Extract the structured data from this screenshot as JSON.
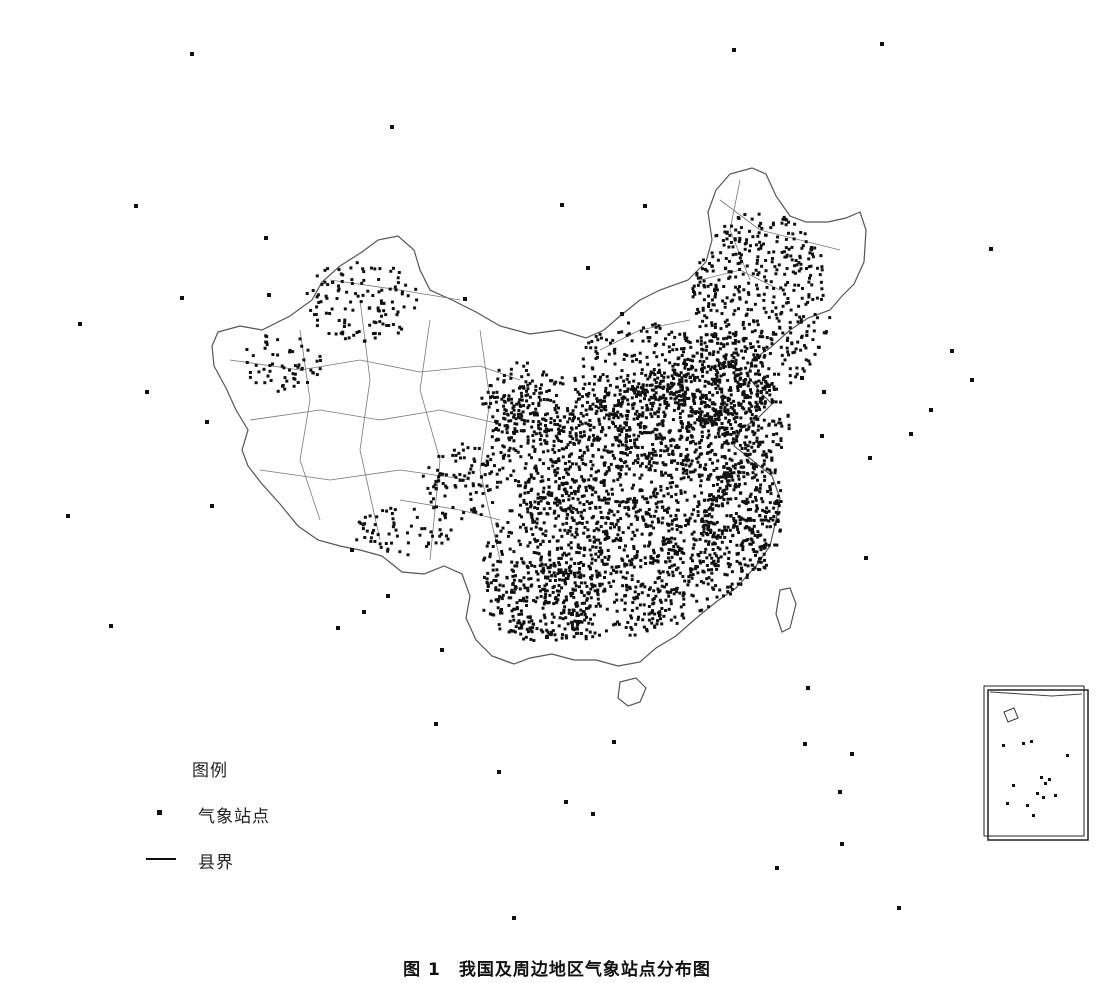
{
  "legend": {
    "title": "图例",
    "items": [
      {
        "symbol": "square-marker",
        "label": "气象站点"
      },
      {
        "symbol": "line",
        "label": "县界"
      }
    ]
  },
  "caption": {
    "number": "图 1",
    "text": "我国及周边地区气象站点分布图"
  },
  "inset": {
    "description": "South China Sea islands inset"
  },
  "colors": {
    "background": "#ffffff",
    "boundary": "#555555",
    "station": "#111111"
  }
}
